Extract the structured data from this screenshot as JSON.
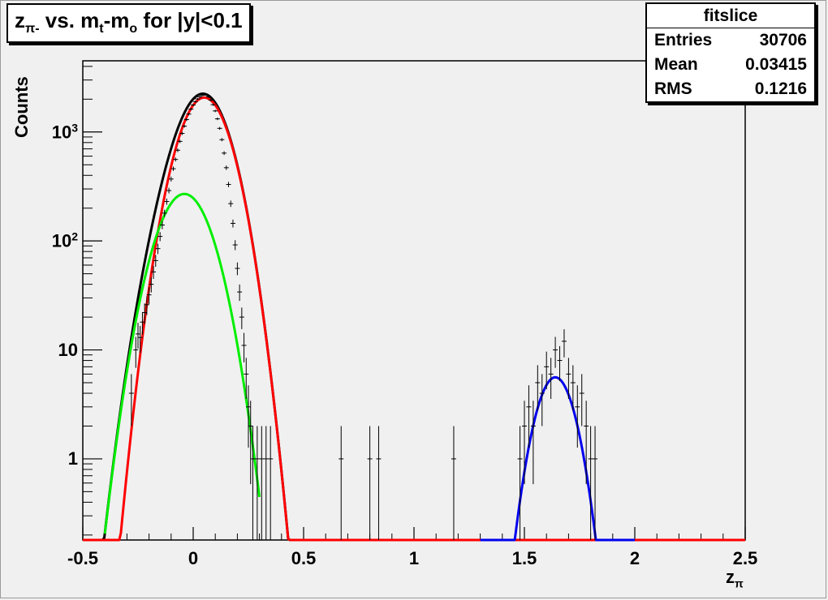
{
  "title": {
    "main": "z",
    "sub": "π-",
    "rest": " vs. m",
    "sub2": "t",
    "rest2": "-m",
    "sub3": "o",
    "rest3": " for |y|<0.1"
  },
  "stats": {
    "name": "fitslice",
    "rows": [
      {
        "label": "Entries",
        "value": "30706"
      },
      {
        "label": "Mean",
        "value": "0.03415"
      },
      {
        "label": "RMS",
        "value": "0.1216"
      }
    ]
  },
  "axes": {
    "ylabel": "Counts",
    "xlabel_main": "z",
    "xlabel_sub": "π"
  },
  "chart_data": {
    "type": "line",
    "xlim": [
      -0.5,
      2.5
    ],
    "ylim": [
      0.18,
      4500
    ],
    "yscale": "log",
    "x_ticks": [
      {
        "value": -0.5,
        "label": "-0.5"
      },
      {
        "value": 0,
        "label": "0"
      },
      {
        "value": 0.5,
        "label": "0.5"
      },
      {
        "value": 1,
        "label": "1"
      },
      {
        "value": 1.5,
        "label": "1.5"
      },
      {
        "value": 2,
        "label": "2"
      },
      {
        "value": 2.5,
        "label": "2.5"
      }
    ],
    "y_ticks": [
      {
        "value": 1,
        "label": "1",
        "sup": ""
      },
      {
        "value": 10,
        "label": "10",
        "sup": ""
      },
      {
        "value": 100,
        "label": "10",
        "sup": "2"
      },
      {
        "value": 1000,
        "label": "10",
        "sup": "3"
      }
    ],
    "series": [
      {
        "color": "#000000",
        "components": [
          {
            "amp": 2070,
            "mean": 0.05,
            "sigma": 0.088
          },
          {
            "amp": 270,
            "mean": -0.04,
            "sigma": 0.095
          }
        ],
        "range": [
          -0.5,
          2.5
        ],
        "floor": true
      },
      {
        "color": "#ff0000",
        "components": [
          {
            "amp": 2070,
            "mean": 0.05,
            "sigma": 0.088
          }
        ],
        "range": [
          -0.5,
          2.5
        ]
      },
      {
        "color": "#00ee00",
        "components": [
          {
            "amp": 270,
            "mean": -0.04,
            "sigma": 0.095
          }
        ],
        "range": [
          -0.4,
          0.3
        ]
      },
      {
        "color": "#0000ee",
        "components": [
          {
            "amp": 5.6,
            "mean": 1.64,
            "sigma": 0.07
          }
        ],
        "range": [
          1.3,
          2.0
        ]
      }
    ],
    "data_points": [
      [
        -0.28,
        4
      ],
      [
        -0.26,
        10
      ],
      [
        -0.25,
        14
      ],
      [
        -0.24,
        13
      ],
      [
        -0.23,
        18
      ],
      [
        -0.22,
        22
      ],
      [
        -0.21,
        26
      ],
      [
        -0.2,
        32
      ],
      [
        -0.19,
        40
      ],
      [
        -0.18,
        52
      ],
      [
        -0.17,
        66
      ],
      [
        -0.16,
        85
      ],
      [
        -0.15,
        110
      ],
      [
        -0.14,
        140
      ],
      [
        -0.13,
        180
      ],
      [
        -0.12,
        230
      ],
      [
        -0.11,
        290
      ],
      [
        -0.1,
        370
      ],
      [
        -0.09,
        460
      ],
      [
        -0.08,
        560
      ],
      [
        -0.07,
        680
      ],
      [
        -0.06,
        820
      ],
      [
        -0.05,
        970
      ],
      [
        -0.04,
        1130
      ],
      [
        -0.03,
        1300
      ],
      [
        -0.02,
        1460
      ],
      [
        -0.01,
        1620
      ],
      [
        0.0,
        1770
      ],
      [
        0.01,
        1900
      ],
      [
        0.02,
        2010
      ],
      [
        0.03,
        2100
      ],
      [
        0.04,
        2170
      ],
      [
        0.05,
        2200
      ],
      [
        0.06,
        2180
      ],
      [
        0.07,
        2100
      ],
      [
        0.08,
        1960
      ],
      [
        0.09,
        1780
      ],
      [
        0.1,
        1560
      ],
      [
        0.11,
        1320
      ],
      [
        0.12,
        1080
      ],
      [
        0.13,
        850
      ],
      [
        0.14,
        640
      ],
      [
        0.15,
        470
      ],
      [
        0.16,
        330
      ],
      [
        0.17,
        220
      ],
      [
        0.18,
        145
      ],
      [
        0.19,
        92
      ],
      [
        0.2,
        56
      ],
      [
        0.21,
        34
      ],
      [
        0.22,
        20
      ],
      [
        0.23,
        11
      ],
      [
        0.24,
        6
      ],
      [
        0.25,
        3
      ],
      [
        0.26,
        2
      ],
      [
        0.27,
        1
      ],
      [
        0.29,
        1
      ],
      [
        0.31,
        1
      ],
      [
        0.33,
        1
      ],
      [
        0.35,
        1
      ],
      [
        0.67,
        1
      ],
      [
        0.8,
        1
      ],
      [
        0.84,
        1
      ],
      [
        1.18,
        1
      ],
      [
        1.48,
        1
      ],
      [
        1.5,
        2
      ],
      [
        1.52,
        3
      ],
      [
        1.54,
        2
      ],
      [
        1.56,
        5
      ],
      [
        1.58,
        4
      ],
      [
        1.6,
        7
      ],
      [
        1.62,
        6
      ],
      [
        1.64,
        10
      ],
      [
        1.66,
        8
      ],
      [
        1.68,
        12
      ],
      [
        1.7,
        6
      ],
      [
        1.72,
        5
      ],
      [
        1.74,
        3
      ],
      [
        1.76,
        4
      ],
      [
        1.78,
        2
      ],
      [
        1.8,
        1
      ],
      [
        1.82,
        1
      ]
    ]
  }
}
